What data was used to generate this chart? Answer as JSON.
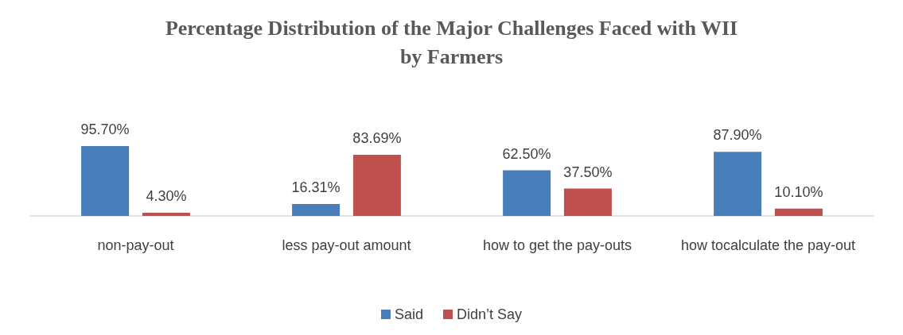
{
  "chart_data": {
    "type": "bar",
    "title": "Percentage Distribution of the Major Challenges Faced with WII\nby Farmers",
    "categories": [
      "non-pay-out",
      "less pay-out amount",
      "how to get the pay-outs",
      "how tocalculate the pay-out"
    ],
    "series": [
      {
        "name": "Said",
        "color": "#4a7ebb",
        "values": [
          95.7,
          16.31,
          62.5,
          87.9
        ],
        "value_labels": [
          "95.70%",
          "16.31%",
          "62.50%",
          "87.90%"
        ]
      },
      {
        "name": "Didn’t Say",
        "color": "#c0504d",
        "values": [
          4.3,
          83.69,
          37.5,
          10.1
        ],
        "value_labels": [
          "4.30%",
          "83.69%",
          "37.50%",
          "10.10%"
        ]
      }
    ],
    "legend": "bottom",
    "grid": false
  }
}
